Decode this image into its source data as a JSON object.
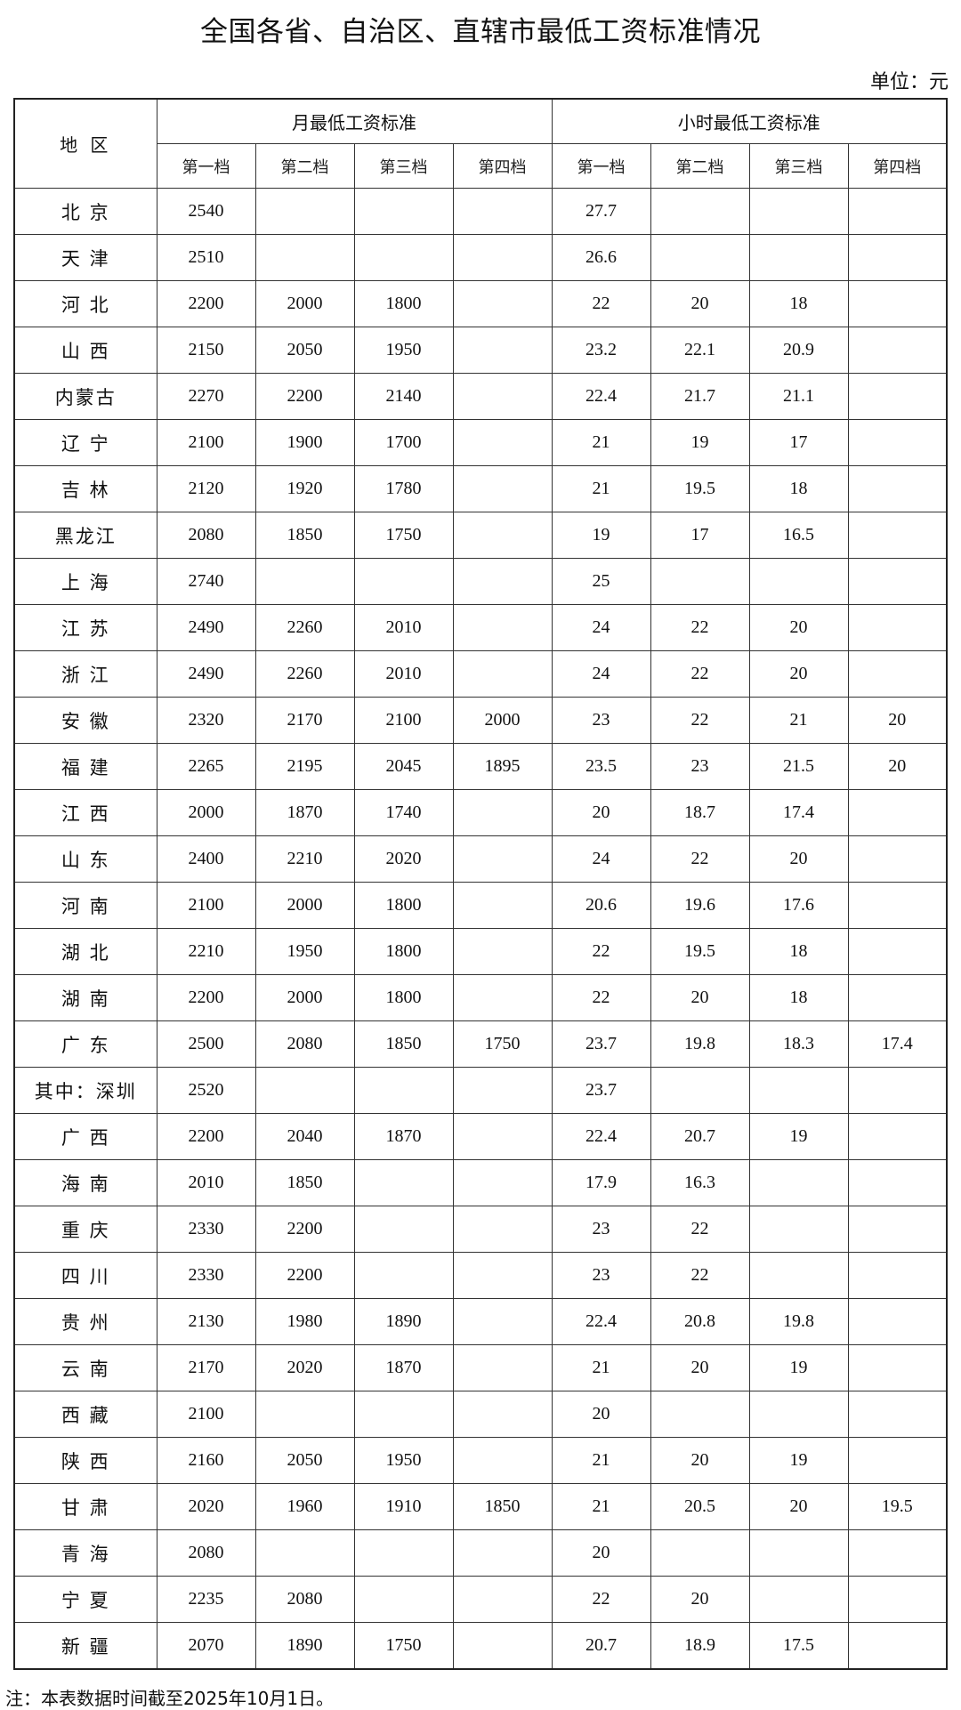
{
  "title": "全国各省、自治区、直辖市最低工资标准情况",
  "unit": "单位：元",
  "header": {
    "region": "地 区",
    "monthly": "月最低工资标准",
    "hourly": "小时最低工资标准",
    "tiers": [
      "第一档",
      "第二档",
      "第三档",
      "第四档"
    ]
  },
  "rows": [
    [
      "北 京",
      "2540",
      "",
      "",
      "",
      "27.7",
      "",
      "",
      ""
    ],
    [
      "天 津",
      "2510",
      "",
      "",
      "",
      "26.6",
      "",
      "",
      ""
    ],
    [
      "河 北",
      "2200",
      "2000",
      "1800",
      "",
      "22",
      "20",
      "18",
      ""
    ],
    [
      "山 西",
      "2150",
      "2050",
      "1950",
      "",
      "23.2",
      "22.1",
      "20.9",
      ""
    ],
    [
      "内蒙古",
      "2270",
      "2200",
      "2140",
      "",
      "22.4",
      "21.7",
      "21.1",
      ""
    ],
    [
      "辽 宁",
      "2100",
      "1900",
      "1700",
      "",
      "21",
      "19",
      "17",
      ""
    ],
    [
      "吉 林",
      "2120",
      "1920",
      "1780",
      "",
      "21",
      "19.5",
      "18",
      ""
    ],
    [
      "黑龙江",
      "2080",
      "1850",
      "1750",
      "",
      "19",
      "17",
      "16.5",
      ""
    ],
    [
      "上 海",
      "2740",
      "",
      "",
      "",
      "25",
      "",
      "",
      ""
    ],
    [
      "江 苏",
      "2490",
      "2260",
      "2010",
      "",
      "24",
      "22",
      "20",
      ""
    ],
    [
      "浙 江",
      "2490",
      "2260",
      "2010",
      "",
      "24",
      "22",
      "20",
      ""
    ],
    [
      "安 徽",
      "2320",
      "2170",
      "2100",
      "2000",
      "23",
      "22",
      "21",
      "20"
    ],
    [
      "福 建",
      "2265",
      "2195",
      "2045",
      "1895",
      "23.5",
      "23",
      "21.5",
      "20"
    ],
    [
      "江 西",
      "2000",
      "1870",
      "1740",
      "",
      "20",
      "18.7",
      "17.4",
      ""
    ],
    [
      "山 东",
      "2400",
      "2210",
      "2020",
      "",
      "24",
      "22",
      "20",
      ""
    ],
    [
      "河 南",
      "2100",
      "2000",
      "1800",
      "",
      "20.6",
      "19.6",
      "17.6",
      ""
    ],
    [
      "湖 北",
      "2210",
      "1950",
      "1800",
      "",
      "22",
      "19.5",
      "18",
      ""
    ],
    [
      "湖 南",
      "2200",
      "2000",
      "1800",
      "",
      "22",
      "20",
      "18",
      ""
    ],
    [
      "广 东",
      "2500",
      "2080",
      "1850",
      "1750",
      "23.7",
      "19.8",
      "18.3",
      "17.4"
    ],
    [
      "其中：深圳",
      "2520",
      "",
      "",
      "",
      "23.7",
      "",
      "",
      ""
    ],
    [
      "广 西",
      "2200",
      "2040",
      "1870",
      "",
      "22.4",
      "20.7",
      "19",
      ""
    ],
    [
      "海 南",
      "2010",
      "1850",
      "",
      "",
      "17.9",
      "16.3",
      "",
      ""
    ],
    [
      "重 庆",
      "2330",
      "2200",
      "",
      "",
      "23",
      "22",
      "",
      ""
    ],
    [
      "四 川",
      "2330",
      "2200",
      "",
      "",
      "23",
      "22",
      "",
      ""
    ],
    [
      "贵 州",
      "2130",
      "1980",
      "1890",
      "",
      "22.4",
      "20.8",
      "19.8",
      ""
    ],
    [
      "云 南",
      "2170",
      "2020",
      "1870",
      "",
      "21",
      "20",
      "19",
      ""
    ],
    [
      "西 藏",
      "2100",
      "",
      "",
      "",
      "20",
      "",
      "",
      ""
    ],
    [
      "陕 西",
      "2160",
      "2050",
      "1950",
      "",
      "21",
      "20",
      "19",
      ""
    ],
    [
      "甘 肃",
      "2020",
      "1960",
      "1910",
      "1850",
      "21",
      "20.5",
      "20",
      "19.5"
    ],
    [
      "青 海",
      "2080",
      "",
      "",
      "",
      "20",
      "",
      "",
      ""
    ],
    [
      "宁 夏",
      "2235",
      "2080",
      "",
      "",
      "22",
      "20",
      "",
      ""
    ],
    [
      "新 疆",
      "2070",
      "1890",
      "1750",
      "",
      "20.7",
      "18.9",
      "17.5",
      ""
    ]
  ],
  "note": "注：本表数据时间截至2025年10月1日。"
}
